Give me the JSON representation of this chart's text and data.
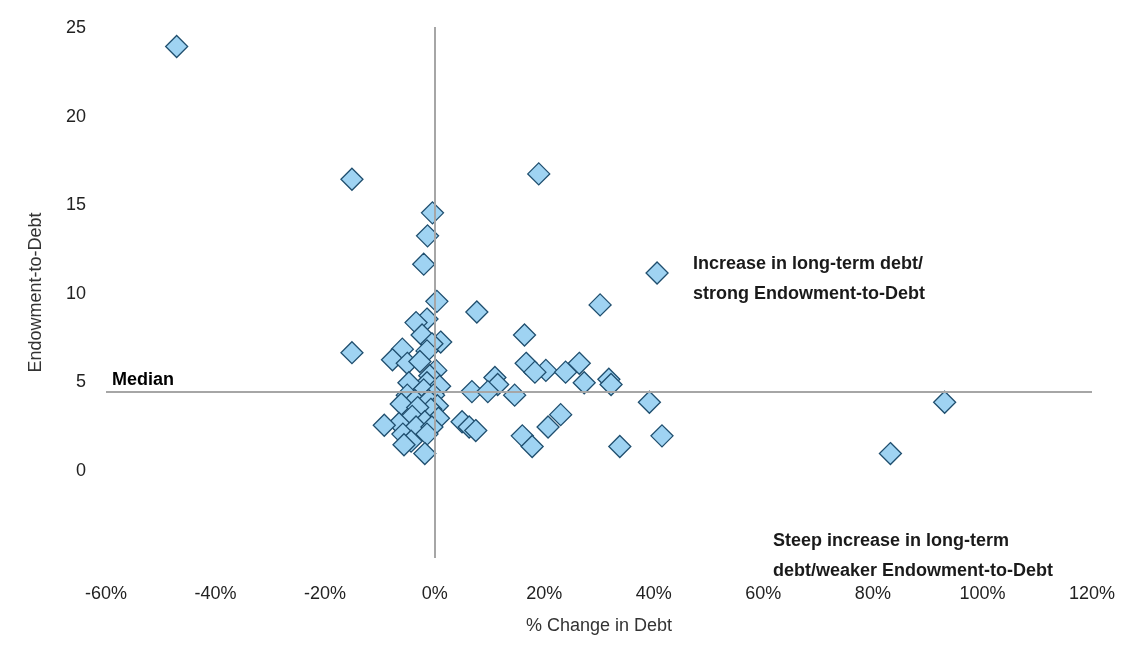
{
  "chart_data": {
    "type": "scatter",
    "xlabel": "% Change in Debt",
    "ylabel": "Endowment-to-Debt",
    "x": [
      -47.1,
      -15.1,
      19.0,
      -0.4,
      -1.3,
      -2.0,
      40.6,
      0.4,
      30.2,
      7.7,
      -1.4,
      -3.4,
      -2.3,
      16.4,
      -15.1,
      1.1,
      -0.5,
      -5.9,
      -1.4,
      -7.7,
      -5.0,
      -2.7,
      16.7,
      26.4,
      20.3,
      18.3,
      23.9,
      0.2,
      -0.9,
      11.0,
      31.8,
      27.3,
      11.5,
      32.2,
      -1.4,
      -4.7,
      0.9,
      6.8,
      9.7,
      14.6,
      -2.0,
      -5.0,
      -0.2,
      39.2,
      93.1,
      -3.6,
      -1.1,
      -6.1,
      0.5,
      -0.7,
      -3.1,
      23.0,
      0.7,
      -4.1,
      5.0,
      -1.8,
      -6.5,
      -9.2,
      6.3,
      7.5,
      20.7,
      -3.4,
      -0.5,
      -5.8,
      -1.4,
      16.0,
      41.5,
      -4.3,
      -5.6,
      17.8,
      33.8,
      83.2,
      -1.8
    ],
    "values": [
      23.9,
      16.4,
      16.7,
      14.5,
      13.2,
      11.6,
      11.1,
      9.5,
      9.3,
      8.9,
      8.5,
      8.3,
      7.6,
      7.6,
      6.6,
      7.2,
      7.1,
      6.8,
      6.7,
      6.2,
      6.0,
      6.1,
      6.0,
      6.0,
      5.6,
      5.5,
      5.5,
      5.6,
      5.3,
      5.2,
      5.1,
      4.9,
      4.8,
      4.8,
      4.9,
      4.9,
      4.7,
      4.4,
      4.4,
      4.2,
      4.5,
      4.2,
      4.2,
      3.8,
      3.8,
      3.9,
      3.9,
      3.7,
      3.6,
      3.4,
      3.5,
      3.1,
      2.9,
      3.0,
      2.7,
      2.7,
      2.6,
      2.5,
      2.4,
      2.2,
      2.4,
      2.4,
      2.4,
      2.0,
      2.0,
      1.9,
      1.9,
      1.6,
      1.4,
      1.3,
      1.3,
      0.9,
      0.9
    ],
    "color": "#9fd3f2",
    "marker": "diamond",
    "xlim": [
      -60,
      120
    ],
    "xticks": [
      {
        "value": -60,
        "label": "-60%"
      },
      {
        "value": -40,
        "label": "-40%"
      },
      {
        "value": -20,
        "label": "-20%"
      },
      {
        "value": 0,
        "label": "0%"
      },
      {
        "value": 20,
        "label": "20%"
      },
      {
        "value": 40,
        "label": "40%"
      },
      {
        "value": 60,
        "label": "60%"
      },
      {
        "value": 80,
        "label": "80%"
      },
      {
        "value": 100,
        "label": "100%"
      },
      {
        "value": 120,
        "label": "120%"
      }
    ],
    "ylim": [
      -5,
      25
    ],
    "yticks": [
      0,
      5,
      10,
      15,
      20,
      25
    ],
    "ref_lines": [
      {
        "axis": "y",
        "value": 4.4,
        "label": "Median",
        "color": "#a6a6a6"
      },
      {
        "axis": "x",
        "value": 0,
        "color": "#a6a6a6"
      }
    ],
    "annotations": [
      "Increase in long-term debt/\nstrong Endowment-to-Debt",
      "Steep increase in long-term\ndebt/weaker Endowment-to-Debt"
    ],
    "grid": false
  }
}
